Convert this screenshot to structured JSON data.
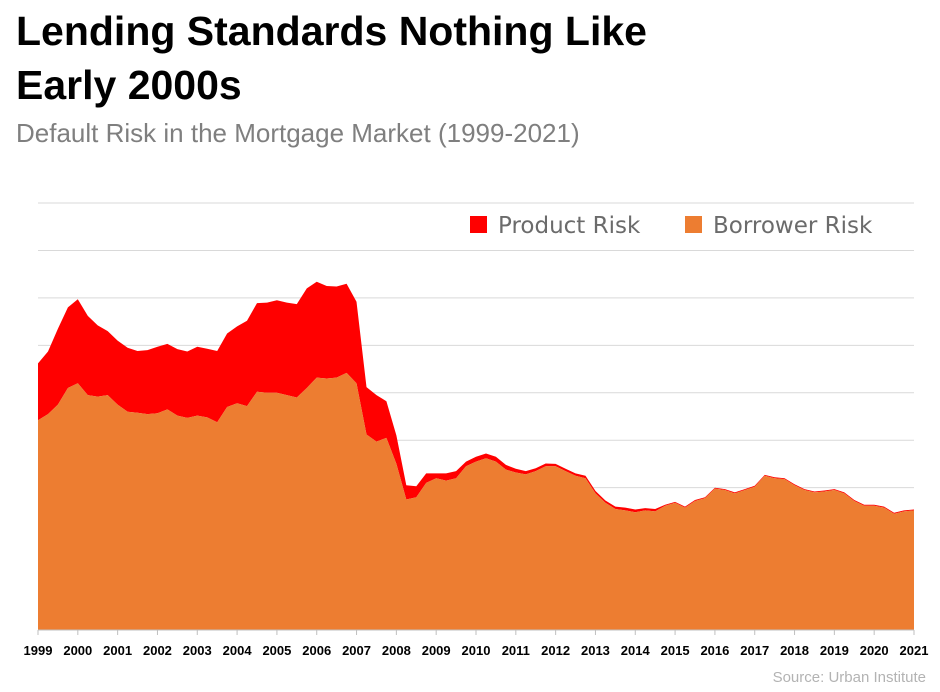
{
  "header": {
    "title_line1": "Lending Standards Nothing Like",
    "title_line2": "Early 2000s",
    "subtitle": "Default Risk in the Mortgage Market (1999-2021)"
  },
  "footer": {
    "source": "Source: Urban Institute"
  },
  "chart_data": {
    "type": "area",
    "stacked": true,
    "title": "Lending Standards Nothing Like Early 2000s",
    "subtitle": "Default Risk in the Mortgage Market (1999-2021)",
    "xlabel": "",
    "ylabel": "",
    "x_range": [
      1999,
      2021
    ],
    "y_range": [
      0,
      9
    ],
    "grid": "horizontal",
    "legend_position": "top-right",
    "tick_labels": [
      "1999",
      "2000",
      "2001",
      "2002",
      "2003",
      "2004",
      "2005",
      "2006",
      "2007",
      "2008",
      "2009",
      "2010",
      "2011",
      "2012",
      "2013",
      "2014",
      "2015",
      "2016",
      "2017",
      "2018",
      "2019",
      "2020",
      "2021"
    ],
    "colors": {
      "product_risk": "#ff0000",
      "borrower_risk": "#ed7d31",
      "grid": "#d9d9d9"
    },
    "series": [
      {
        "name": "Borrower Risk",
        "points": [
          [
            1999,
            4.42
          ],
          [
            1999.25,
            4.55
          ],
          [
            1999.5,
            4.75
          ],
          [
            1999.75,
            5.1
          ],
          [
            2000,
            5.2
          ],
          [
            2000.25,
            4.95
          ],
          [
            2000.5,
            4.92
          ],
          [
            2000.75,
            4.95
          ],
          [
            2001,
            4.75
          ],
          [
            2001.25,
            4.6
          ],
          [
            2001.5,
            4.58
          ],
          [
            2001.75,
            4.55
          ],
          [
            2002,
            4.57
          ],
          [
            2002.25,
            4.65
          ],
          [
            2002.5,
            4.52
          ],
          [
            2002.75,
            4.47
          ],
          [
            2003,
            4.52
          ],
          [
            2003.25,
            4.48
          ],
          [
            2003.5,
            4.38
          ],
          [
            2003.75,
            4.7
          ],
          [
            2004,
            4.78
          ],
          [
            2004.25,
            4.72
          ],
          [
            2004.5,
            5.02
          ],
          [
            2004.75,
            5.0
          ],
          [
            2005,
            5.0
          ],
          [
            2005.25,
            4.95
          ],
          [
            2005.5,
            4.9
          ],
          [
            2005.75,
            5.1
          ],
          [
            2006,
            5.32
          ],
          [
            2006.25,
            5.3
          ],
          [
            2006.5,
            5.32
          ],
          [
            2006.75,
            5.42
          ],
          [
            2007,
            5.2
          ],
          [
            2007.25,
            4.12
          ],
          [
            2007.5,
            3.97
          ],
          [
            2007.75,
            4.05
          ],
          [
            2008,
            3.5
          ],
          [
            2008.25,
            2.75
          ],
          [
            2008.5,
            2.8
          ],
          [
            2008.75,
            3.1
          ],
          [
            2009,
            3.2
          ],
          [
            2009.25,
            3.15
          ],
          [
            2009.5,
            3.2
          ],
          [
            2009.75,
            3.45
          ],
          [
            2010,
            3.55
          ],
          [
            2010.25,
            3.62
          ],
          [
            2010.5,
            3.55
          ],
          [
            2010.75,
            3.38
          ],
          [
            2011,
            3.32
          ],
          [
            2011.25,
            3.28
          ],
          [
            2011.5,
            3.35
          ],
          [
            2011.75,
            3.45
          ],
          [
            2012,
            3.45
          ],
          [
            2012.25,
            3.35
          ],
          [
            2012.5,
            3.25
          ],
          [
            2012.75,
            3.2
          ],
          [
            2013,
            2.88
          ],
          [
            2013.25,
            2.68
          ],
          [
            2013.5,
            2.55
          ],
          [
            2013.75,
            2.52
          ],
          [
            2014,
            2.48
          ],
          [
            2014.25,
            2.52
          ],
          [
            2014.5,
            2.5
          ],
          [
            2014.75,
            2.62
          ],
          [
            2015,
            2.68
          ],
          [
            2015.25,
            2.58
          ],
          [
            2015.5,
            2.72
          ],
          [
            2015.75,
            2.78
          ],
          [
            2016,
            2.98
          ],
          [
            2016.25,
            2.95
          ],
          [
            2016.5,
            2.88
          ],
          [
            2016.75,
            2.95
          ],
          [
            2017,
            3.02
          ],
          [
            2017.25,
            3.25
          ],
          [
            2017.5,
            3.2
          ],
          [
            2017.75,
            3.18
          ],
          [
            2018,
            3.05
          ],
          [
            2018.25,
            2.95
          ],
          [
            2018.5,
            2.9
          ],
          [
            2018.75,
            2.92
          ],
          [
            2019,
            2.95
          ],
          [
            2019.25,
            2.88
          ],
          [
            2019.5,
            2.72
          ],
          [
            2019.75,
            2.62
          ],
          [
            2020,
            2.62
          ],
          [
            2020.25,
            2.58
          ],
          [
            2020.5,
            2.45
          ],
          [
            2020.75,
            2.5
          ],
          [
            2021,
            2.52
          ]
        ]
      },
      {
        "name": "Product Risk",
        "points": [
          [
            1999,
            1.2
          ],
          [
            1999.25,
            1.32
          ],
          [
            1999.5,
            1.6
          ],
          [
            1999.75,
            1.7
          ],
          [
            2000,
            1.77
          ],
          [
            2000.25,
            1.67
          ],
          [
            2000.5,
            1.5
          ],
          [
            2000.75,
            1.35
          ],
          [
            2001,
            1.35
          ],
          [
            2001.25,
            1.35
          ],
          [
            2001.5,
            1.3
          ],
          [
            2001.75,
            1.35
          ],
          [
            2002,
            1.4
          ],
          [
            2002.25,
            1.38
          ],
          [
            2002.5,
            1.4
          ],
          [
            2002.75,
            1.4
          ],
          [
            2003,
            1.45
          ],
          [
            2003.25,
            1.45
          ],
          [
            2003.5,
            1.5
          ],
          [
            2003.75,
            1.55
          ],
          [
            2004,
            1.62
          ],
          [
            2004.25,
            1.8
          ],
          [
            2004.5,
            1.87
          ],
          [
            2004.75,
            1.9
          ],
          [
            2005,
            1.95
          ],
          [
            2005.25,
            1.95
          ],
          [
            2005.5,
            1.97
          ],
          [
            2005.75,
            2.1
          ],
          [
            2006,
            2.02
          ],
          [
            2006.25,
            1.95
          ],
          [
            2006.5,
            1.92
          ],
          [
            2006.75,
            1.88
          ],
          [
            2007,
            1.72
          ],
          [
            2007.25,
            1.0
          ],
          [
            2007.5,
            0.98
          ],
          [
            2007.75,
            0.77
          ],
          [
            2008,
            0.6
          ],
          [
            2008.25,
            0.3
          ],
          [
            2008.5,
            0.23
          ],
          [
            2008.75,
            0.2
          ],
          [
            2009,
            0.1
          ],
          [
            2009.25,
            0.15
          ],
          [
            2009.5,
            0.15
          ],
          [
            2009.75,
            0.1
          ],
          [
            2010,
            0.1
          ],
          [
            2010.25,
            0.1
          ],
          [
            2010.5,
            0.1
          ],
          [
            2010.75,
            0.1
          ],
          [
            2011,
            0.08
          ],
          [
            2011.25,
            0.07
          ],
          [
            2011.5,
            0.06
          ],
          [
            2011.75,
            0.06
          ],
          [
            2012,
            0.05
          ],
          [
            2012.25,
            0.05
          ],
          [
            2012.5,
            0.05
          ],
          [
            2012.75,
            0.05
          ],
          [
            2013,
            0.05
          ],
          [
            2013.25,
            0.05
          ],
          [
            2013.5,
            0.05
          ],
          [
            2013.75,
            0.06
          ],
          [
            2014,
            0.06
          ],
          [
            2014.25,
            0.05
          ],
          [
            2014.5,
            0.05
          ],
          [
            2014.75,
            0.02
          ],
          [
            2015,
            0.02
          ],
          [
            2015.25,
            0.02
          ],
          [
            2015.5,
            0.02
          ],
          [
            2015.75,
            0.02
          ],
          [
            2016,
            0.02
          ],
          [
            2016.25,
            0.02
          ],
          [
            2016.5,
            0.02
          ],
          [
            2016.75,
            0.02
          ],
          [
            2017,
            0.02
          ],
          [
            2017.25,
            0.02
          ],
          [
            2017.5,
            0.02
          ],
          [
            2017.75,
            0.02
          ],
          [
            2018,
            0.02
          ],
          [
            2018.25,
            0.02
          ],
          [
            2018.5,
            0.02
          ],
          [
            2018.75,
            0.02
          ],
          [
            2019,
            0.02
          ],
          [
            2019.25,
            0.02
          ],
          [
            2019.5,
            0.02
          ],
          [
            2019.75,
            0.02
          ],
          [
            2020,
            0.02
          ],
          [
            2020.25,
            0.02
          ],
          [
            2020.5,
            0.02
          ],
          [
            2020.75,
            0.02
          ],
          [
            2021,
            0.02
          ]
        ]
      }
    ]
  }
}
